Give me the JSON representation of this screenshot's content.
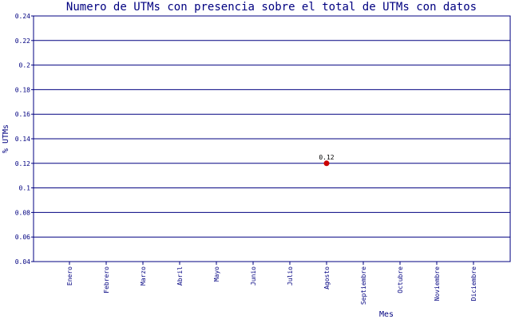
{
  "chart_data": {
    "type": "scatter",
    "title": "Numero de UTMs con presencia sobre el total de UTMs con datos",
    "xlabel": "Mes",
    "ylabel": "% UTMs",
    "categories": [
      "Enero",
      "Febrero",
      "Marzo",
      "Abril",
      "Mayo",
      "Junio",
      "Julio",
      "Agosto",
      "Septiembre",
      "Octubre",
      "Noviembre",
      "Diciembre"
    ],
    "ylim": [
      0.04,
      0.24
    ],
    "yticks": [
      "0.04",
      "0.06",
      "0.08",
      "0.1",
      "0.12",
      "0.14",
      "0.16",
      "0.18",
      "0.2",
      "0.22",
      "0.24"
    ],
    "grid": true,
    "points": [
      {
        "category": "Agosto",
        "value": 0.12,
        "label": "0.12"
      }
    ],
    "colors": {
      "text": "#000080",
      "grid": "#000080",
      "marker": "#cc0000"
    }
  }
}
